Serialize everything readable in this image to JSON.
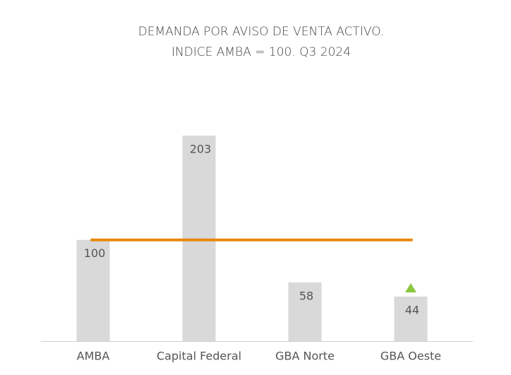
{
  "chart_data": {
    "type": "bar",
    "title": [
      "DEMANDA POR AVISO DE VENTA ACTIVO.",
      "INDICE AMBA = 100. Q3 2024"
    ],
    "categories": [
      "AMBA",
      "Capital Federal",
      "GBA Norte",
      "GBA Oeste"
    ],
    "values": [
      100,
      203,
      58,
      44
    ],
    "color": "#d9d9d9",
    "ylim": [
      0,
      220
    ],
    "reference_line": {
      "value": 100,
      "color": "#e8870e"
    }
  }
}
